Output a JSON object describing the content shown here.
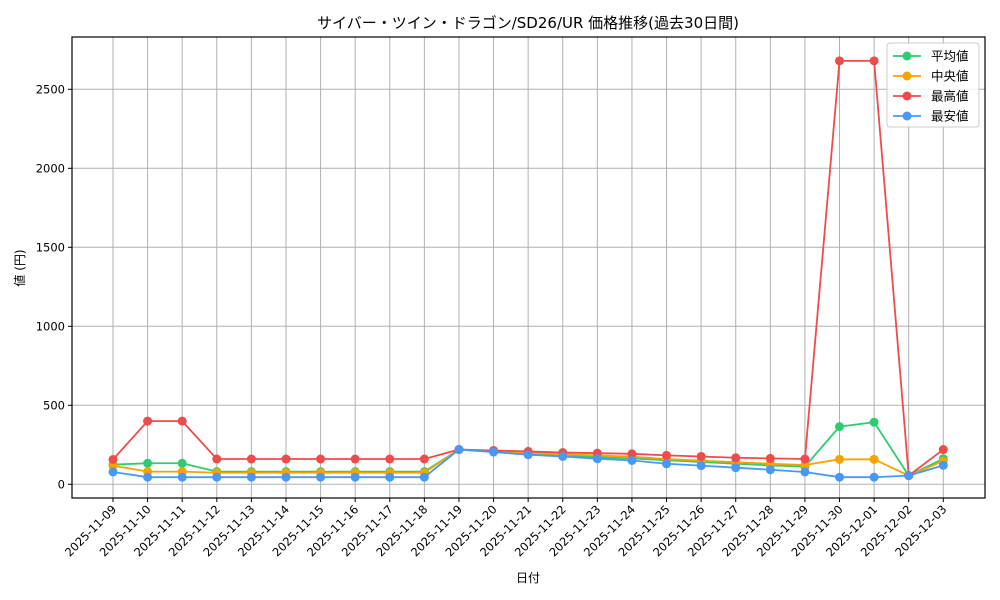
{
  "chart_data": {
    "type": "line",
    "title": "サイバー・ツイン・ドラゴン/SD26/UR 価格推移(過去30日間)",
    "xlabel": "日付",
    "ylabel": "値 (円)",
    "ylim": [
      -90,
      2820
    ],
    "yticks": [
      0,
      500,
      1000,
      1500,
      2000,
      2500
    ],
    "grid": true,
    "legend_position": "upper right",
    "x": [
      "2025-11-09",
      "2025-11-10",
      "2025-11-11",
      "2025-11-12",
      "2025-11-13",
      "2025-11-14",
      "2025-11-15",
      "2025-11-16",
      "2025-11-17",
      "2025-11-18",
      "2025-11-19",
      "2025-11-20",
      "2025-11-21",
      "2025-11-22",
      "2025-11-23",
      "2025-11-24",
      "2025-11-25",
      "2025-11-26",
      "2025-11-27",
      "2025-11-28",
      "2025-11-29",
      "2025-11-30",
      "2025-12-01",
      "2025-12-02",
      "2025-12-03"
    ],
    "series": [
      {
        "name": "平均値",
        "color": "#2ecc71",
        "values": [
          125,
          133,
          133,
          80,
          80,
          80,
          80,
          80,
          80,
          80,
          220,
          208,
          193,
          183,
          172,
          164,
          152,
          141,
          130,
          120,
          112,
          365,
          393,
          55,
          162
        ]
      },
      {
        "name": "中央値",
        "color": "#f5a300",
        "values": [
          118,
          80,
          80,
          73,
          73,
          73,
          73,
          73,
          73,
          73,
          220,
          210,
          198,
          190,
          182,
          175,
          160,
          150,
          140,
          130,
          122,
          158,
          158,
          55,
          147
        ]
      },
      {
        "name": "最高値",
        "color": "#f04b4b",
        "values": [
          157,
          400,
          400,
          160,
          160,
          160,
          160,
          160,
          160,
          160,
          220,
          214,
          208,
          201,
          197,
          193,
          183,
          176,
          168,
          164,
          160,
          2680,
          2680,
          55,
          220
        ]
      },
      {
        "name": "最安値",
        "color": "#4a98f5",
        "values": [
          78,
          45,
          45,
          45,
          45,
          45,
          45,
          45,
          45,
          45,
          220,
          204,
          187,
          176,
          162,
          151,
          130,
          118,
          105,
          92,
          78,
          45,
          45,
          55,
          120
        ]
      }
    ]
  }
}
